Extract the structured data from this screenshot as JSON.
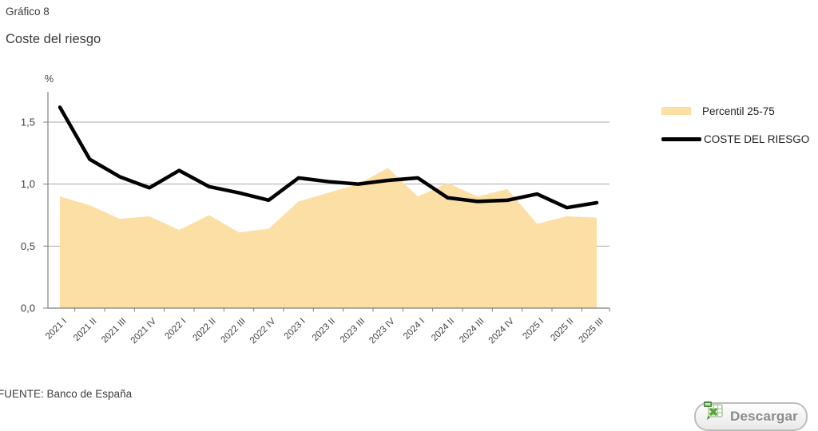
{
  "page": {
    "kicker": "Gráfico 8",
    "title": "Coste del riesgo",
    "source": "FUENTE: Banco de España"
  },
  "download_button": {
    "label": "Descargar",
    "icon": "excel-download-icon"
  },
  "chart_data": {
    "type": "area",
    "title": "Coste del riesgo",
    "unit_label": "%",
    "categories": [
      "2021 I",
      "2021 II",
      "2021 III",
      "2021 IV",
      "2022 I",
      "2022 II",
      "2022 III",
      "2022 IV",
      "2023 I",
      "2023 II",
      "2023 III",
      "2023 IV",
      "2024 I",
      "2024 II",
      "2024 III",
      "2024 IV",
      "2025 I",
      "2025 II",
      "2025 III"
    ],
    "series": [
      {
        "name": "Percentil 25-75",
        "type": "area",
        "color": "#FBDFA4",
        "values": [
          0.9,
          0.83,
          0.72,
          0.74,
          0.63,
          0.75,
          0.61,
          0.64,
          0.86,
          0.93,
          1.0,
          1.13,
          0.9,
          1.01,
          0.9,
          0.96,
          0.68,
          0.74,
          0.73
        ],
        "band_bottom": 0
      },
      {
        "name": "COSTE DEL RIESGO",
        "type": "line",
        "color": "#000000",
        "values": [
          1.62,
          1.2,
          1.06,
          0.97,
          1.11,
          0.98,
          0.93,
          0.87,
          1.05,
          1.02,
          1.0,
          1.03,
          1.05,
          0.89,
          0.86,
          0.87,
          0.92,
          0.81,
          0.85
        ]
      }
    ],
    "ylim": [
      0,
      1.75
    ],
    "yticks": {
      "values": [
        0,
        0.5,
        1.0,
        1.5
      ],
      "labels": [
        "0,0",
        "0,5",
        "1,0",
        "1,5"
      ]
    },
    "decimal_separator": ",",
    "grid": true,
    "gridline_color": "#ABABAB",
    "axis_color": "#808080",
    "tick_label_color": "#404040",
    "xlabel_rotation": 45,
    "legend_position": "right"
  }
}
